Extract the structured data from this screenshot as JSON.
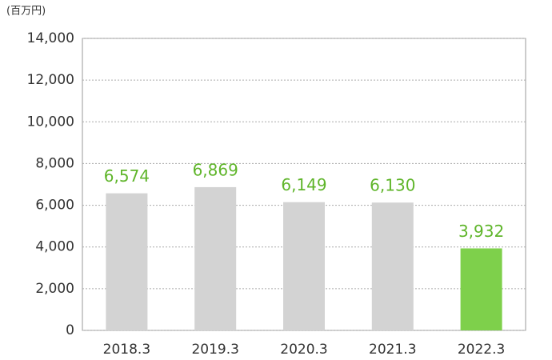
{
  "chart_data": {
    "type": "bar",
    "unit_label": "(百万円)",
    "categories": [
      "2018.3",
      "2019.3",
      "2020.3",
      "2021.3",
      "2022.3"
    ],
    "values": [
      6574,
      6869,
      6149,
      6130,
      3932
    ],
    "value_labels": [
      "6,574",
      "6,869",
      "6,149",
      "6,130",
      "3,932"
    ],
    "colors": [
      "#d3d3d3",
      "#d3d3d3",
      "#d3d3d3",
      "#d3d3d3",
      "#7ed04b"
    ],
    "ylim": [
      0,
      14000
    ],
    "yticks": [
      0,
      {
        "value": 2000,
        "label": "2,000"
      },
      {
        "value": 4000,
        "label": "4,000"
      },
      {
        "value": 6000,
        "label": "6,000"
      },
      {
        "value": 8000,
        "label": "8,000"
      },
      {
        "value": 10000,
        "label": "10,000"
      },
      {
        "value": 12000,
        "label": "12,000"
      },
      {
        "value": 14000,
        "label": "14,000"
      }
    ],
    "grid": true
  }
}
